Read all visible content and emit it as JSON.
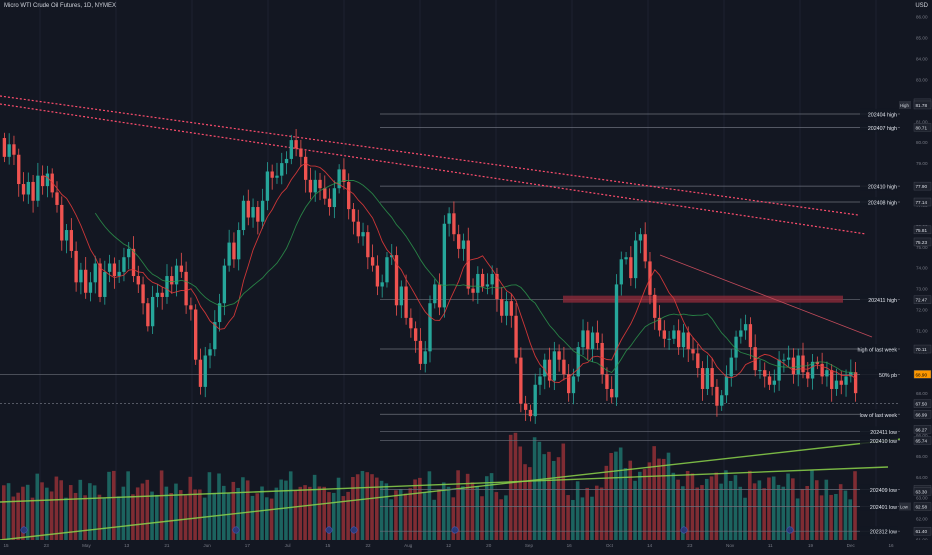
{
  "header": {
    "title": "Micro WTI Crude Oil Futures, 1D, NYMEX",
    "currency": "USD"
  },
  "colors": {
    "background": "#131722",
    "up": "#26a69a",
    "down": "#ef5350",
    "vol_up": "#1e6b66",
    "vol_down": "#8c2f35",
    "trendline": "#ff4d6d",
    "ma_red": "#e03a3a",
    "ma_green": "#2e9c4f",
    "long_ma": "#8bd34a",
    "zone": "#8b2a3a",
    "level_line": "#6b6f7a",
    "highlight_label": "#ff9800"
  },
  "chart_data": {
    "type": "candlestick",
    "instrument": "Micro WTI Crude Oil Futures",
    "interval": "1D",
    "exchange": "NYMEX",
    "y_axis": {
      "ticks": [
        "86.00",
        "85.00",
        "84.00",
        "83.00",
        "82.00",
        "81.00",
        "80.00",
        "79.00",
        "78.00",
        "77.00",
        "76.00",
        "75.00",
        "74.00",
        "73.00",
        "72.00",
        "71.00",
        "70.00",
        "69.00",
        "68.00",
        "67.00",
        "66.00",
        "65.00",
        "64.00",
        "63.00",
        "62.00",
        "61.00"
      ],
      "ylim": [
        60.5,
        86.8
      ]
    },
    "x_axis": {
      "ticks": [
        "15",
        "23",
        "May",
        "13",
        "21",
        "Jun",
        "17",
        "Jul",
        "15",
        "22",
        "Aug",
        "12",
        "20",
        "Sep",
        "16",
        "Oct",
        "14",
        "23",
        "Nov",
        "11",
        "19",
        "Dec",
        "16"
      ]
    },
    "levels": [
      {
        "label": "202404 high",
        "value": 81.35
      },
      {
        "label": "202407 high",
        "value": 80.71
      },
      {
        "label": "202410 high",
        "value": 77.9
      },
      {
        "label": "202408 high",
        "value": 77.14
      },
      {
        "label": "202411 high",
        "value": 72.47
      },
      {
        "label": "high of last week",
        "value": 70.11
      },
      {
        "label": "50% pb",
        "value": 68.9
      },
      {
        "label": "low of last week",
        "value": 66.99
      },
      {
        "label": "202411 low",
        "value": 66.17
      },
      {
        "label": "202410 low",
        "value": 65.74
      },
      {
        "label": "202409 low",
        "value": 63.4
      },
      {
        "label": "202401 low",
        "value": 62.58
      },
      {
        "label": "202312 low",
        "value": 61.4
      }
    ],
    "price_labels": [
      "81.88",
      "81.78",
      "80.71",
      "77.90",
      "77.14",
      "75.81",
      "75.23",
      "72.47",
      "70.11",
      "68.90",
      "67.50",
      "66.99",
      "66.27",
      "65.74",
      "63.40",
      "63.30",
      "62.58",
      "61.40"
    ],
    "axis_badges": [
      "High",
      "Low"
    ],
    "volume_axis_labels": [
      "63.40",
      "63.30",
      "62.58",
      "61.40"
    ],
    "candles_open": [
      80.2,
      79.3,
      79.9,
      79.4,
      78.0,
      77.5,
      78.1,
      77.2,
      78.4,
      77.9,
      78.5,
      77.6,
      77.0,
      75.3,
      75.8,
      74.8,
      73.3,
      73.9,
      72.8,
      73.3,
      74.2,
      72.6,
      73.8,
      74.2,
      73.6,
      73.8,
      74.5,
      74.9,
      73.6,
      73.2,
      72.3,
      71.2,
      72.6,
      72.8,
      72.6,
      73.6,
      73.2,
      74.1,
      73.8,
      72.2,
      72.0,
      69.6,
      68.3,
      69.8,
      70.1,
      71.4,
      72.3,
      74.1,
      75.2,
      74.4,
      75.8,
      77.2,
      76.4,
      76.9,
      76.2,
      77.2,
      78.6,
      78.3,
      78.4,
      79.0,
      79.2,
      80.1,
      79.7,
      79.3,
      78.2,
      77.6,
      78.2,
      77.8,
      77.3,
      76.9,
      77.8,
      78.7,
      78.1,
      76.8,
      76.2,
      75.5,
      75.7,
      74.5,
      74.1,
      73.1,
      73.3,
      74.5,
      74.6,
      72.2,
      73.1,
      71.6,
      71.1,
      70.5,
      69.4,
      70.0,
      72.3,
      73.2,
      72.1,
      76.1,
      76.6,
      75.6,
      74.9,
      75.3,
      73.0,
      72.8,
      73.7,
      73.1,
      73.2,
      73.7,
      72.5,
      71.7,
      72.4,
      71.7,
      69.7,
      67.5,
      67.2,
      66.9,
      68.4,
      68.8,
      69.6,
      68.6,
      70.0,
      69.6,
      68.9,
      68.0,
      68.8,
      70.2,
      71.0,
      70.1,
      70.9,
      70.4,
      68.9,
      68.2,
      67.8,
      73.2,
      74.4,
      74.5,
      73.5,
      75.3,
      75.6,
      74.3,
      72.7,
      71.6,
      71.0,
      70.6,
      70.6,
      71.0,
      70.2,
      70.9,
      70.1,
      69.9,
      69.2,
      68.2,
      69.2,
      68.3,
      67.4,
      67.9,
      68.8,
      69.7,
      70.7,
      71.0,
      71.3,
      70.2,
      69.1,
      69.1,
      68.8,
      68.4,
      68.6,
      69.6,
      69.6,
      69.7,
      68.9,
      69.8,
      69.0,
      68.7,
      69.5,
      69.4,
      68.8,
      69.1,
      68.2,
      68.6,
      68.4,
      68.8,
      69.0
    ],
    "candles_close": [
      79.3,
      79.9,
      79.4,
      78.0,
      77.5,
      78.1,
      77.2,
      78.4,
      77.9,
      78.5,
      77.6,
      77.0,
      75.3,
      75.8,
      74.8,
      73.3,
      73.9,
      72.8,
      73.3,
      74.2,
      72.6,
      73.8,
      74.2,
      73.6,
      73.8,
      74.5,
      74.9,
      73.6,
      73.2,
      72.3,
      71.2,
      72.6,
      72.8,
      72.6,
      73.6,
      73.2,
      74.1,
      73.8,
      72.2,
      72.0,
      69.6,
      68.3,
      69.8,
      70.1,
      71.4,
      72.3,
      74.1,
      75.2,
      74.4,
      75.8,
      77.2,
      76.4,
      76.9,
      76.2,
      77.2,
      78.6,
      78.3,
      78.4,
      79.0,
      79.2,
      80.1,
      79.7,
      79.3,
      78.2,
      77.6,
      78.2,
      77.8,
      77.3,
      76.9,
      77.8,
      78.7,
      78.1,
      76.8,
      76.2,
      75.5,
      75.7,
      74.5,
      74.1,
      73.1,
      73.3,
      74.5,
      74.6,
      72.2,
      73.1,
      71.6,
      71.1,
      70.5,
      69.4,
      70.0,
      72.3,
      73.2,
      72.1,
      76.1,
      76.6,
      75.6,
      74.9,
      75.3,
      73.0,
      72.8,
      73.7,
      73.1,
      73.2,
      73.7,
      72.5,
      71.7,
      72.4,
      71.7,
      69.7,
      67.5,
      67.2,
      66.9,
      68.4,
      68.8,
      69.6,
      68.6,
      70.0,
      69.6,
      68.9,
      68.0,
      68.8,
      70.2,
      71.0,
      70.1,
      70.9,
      70.4,
      68.9,
      68.2,
      67.8,
      73.2,
      74.4,
      74.5,
      73.5,
      75.3,
      75.6,
      74.3,
      72.7,
      71.6,
      71.0,
      70.6,
      70.6,
      71.0,
      70.2,
      70.9,
      70.1,
      69.9,
      69.2,
      68.2,
      69.2,
      68.3,
      67.4,
      67.9,
      68.8,
      69.7,
      70.7,
      71.0,
      71.3,
      70.2,
      69.1,
      69.1,
      68.8,
      68.4,
      68.6,
      69.6,
      69.6,
      69.7,
      68.9,
      69.8,
      69.0,
      68.7,
      69.5,
      69.4,
      68.8,
      69.1,
      68.2,
      68.6,
      68.4,
      68.8,
      69.0,
      68.0
    ]
  }
}
